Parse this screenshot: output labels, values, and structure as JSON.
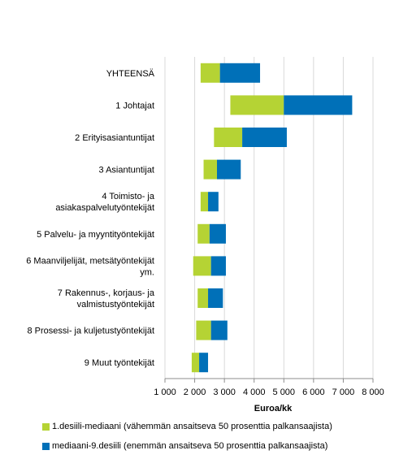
{
  "chart_data": {
    "type": "bar",
    "orientation": "horizontal",
    "stacked": true,
    "categories": [
      [
        "YHTEENSÄ"
      ],
      [
        "1 Johtajat"
      ],
      [
        "2 Erityisasiantuntijat"
      ],
      [
        "3 Asiantuntijat"
      ],
      [
        "4 Toimisto- ja",
        "asiakaspalvelutyöntekijät"
      ],
      [
        "5 Palvelu- ja myyntityöntekijät"
      ],
      [
        "6 Maanviljelijät, metsätyöntekijät",
        "ym."
      ],
      [
        "7 Rakennus-, korjaus- ja",
        "valmistustyöntekijät"
      ],
      [
        "8 Prosessi- ja kuljetustyöntekijät"
      ],
      [
        "9 Muut työntekijät"
      ]
    ],
    "series": [
      {
        "name": "1.desiili-mediaani (vähemmän ansaitseva 50 prosenttia palkansaajista)",
        "color": "#b5d334",
        "start": [
          2200,
          3200,
          2650,
          2300,
          2200,
          2100,
          1950,
          2100,
          2050,
          1900
        ],
        "end": [
          2850,
          5000,
          3600,
          2750,
          2450,
          2500,
          2550,
          2450,
          2550,
          2150
        ]
      },
      {
        "name": "mediaani-9.desiili (enemmän ansaitseva 50 prosenttia palkansaajista)",
        "color": "#0070b8",
        "start": [
          2850,
          5000,
          3600,
          2750,
          2450,
          2500,
          2550,
          2450,
          2550,
          2150
        ],
        "end": [
          4200,
          7300,
          5100,
          3550,
          2800,
          3050,
          3050,
          2950,
          3100,
          2450
        ]
      }
    ],
    "xlabel": "Euroa/kk",
    "ylabel": "",
    "xlim": [
      1000,
      8000
    ],
    "xticks": [
      1000,
      2000,
      3000,
      4000,
      5000,
      6000,
      7000,
      8000
    ],
    "xtick_labels": [
      "1 000",
      "2 000",
      "3 000",
      "4 000",
      "5 000",
      "6 000",
      "7 000",
      "8 000"
    ],
    "grid": true,
    "legend_position": "bottom"
  }
}
